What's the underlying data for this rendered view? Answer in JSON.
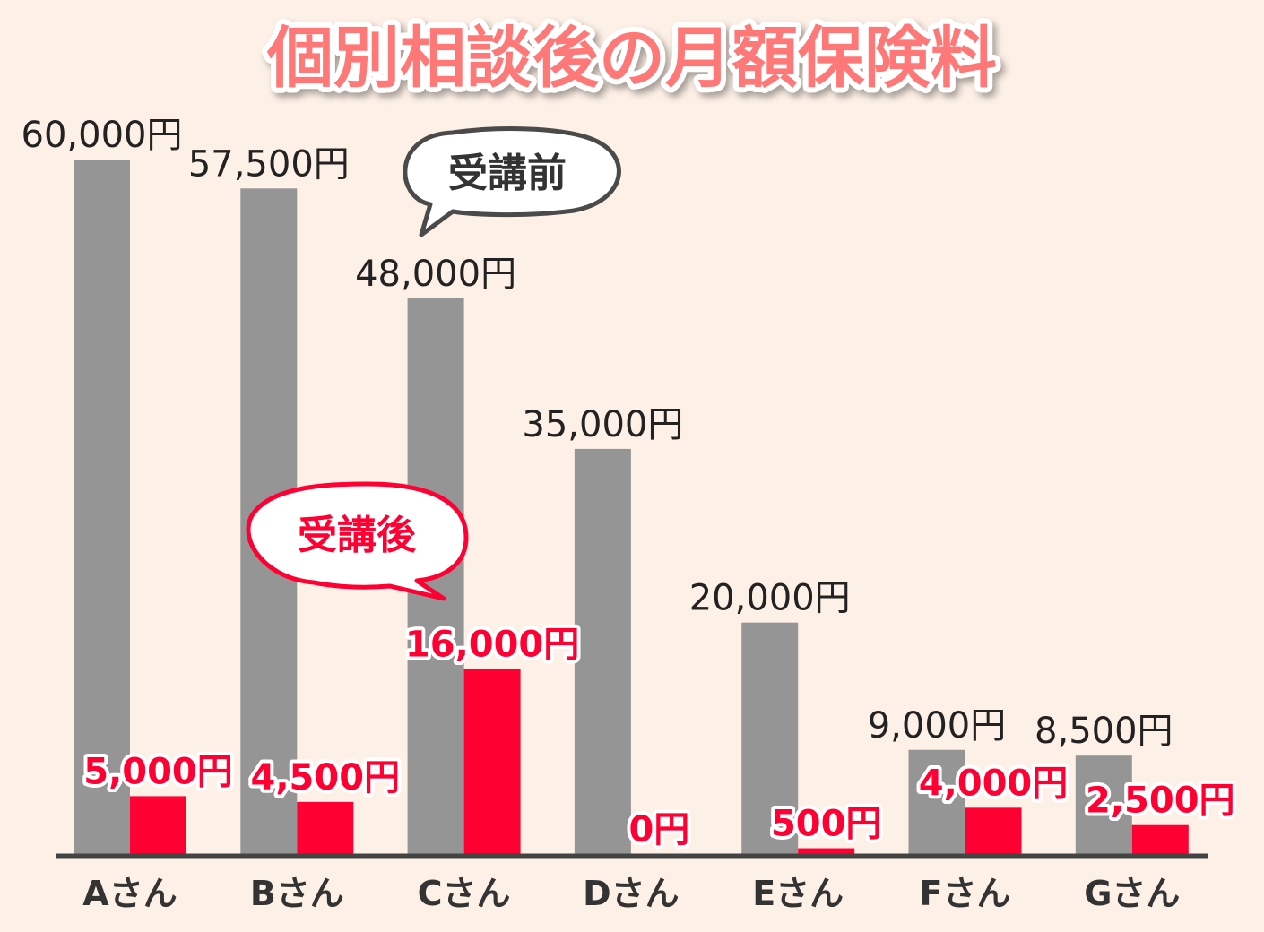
{
  "chart_data": {
    "type": "bar",
    "title": "個別相談後の月額保険料",
    "categories": [
      "Aさん",
      "Bさん",
      "Cさん",
      "Dさん",
      "Eさん",
      "Fさん",
      "Gさん"
    ],
    "series": [
      {
        "name": "受講前",
        "values": [
          60000,
          57500,
          48000,
          35000,
          20000,
          9000,
          8500
        ],
        "labels": [
          "60,000円",
          "57,500円",
          "48,000円",
          "35,000円",
          "20,000円",
          "9,000円",
          "8,500円"
        ],
        "color": "#959595"
      },
      {
        "name": "受講後",
        "values": [
          5000,
          4500,
          16000,
          0,
          500,
          4000,
          2500
        ],
        "labels": [
          "5,000円",
          "4,500円",
          "16,000円",
          "0円",
          "500円",
          "4,000円",
          "2,500円"
        ],
        "color": "#ff0033"
      }
    ],
    "ylim": [
      0,
      60000
    ],
    "grid": false,
    "legend": "callouts"
  }
}
